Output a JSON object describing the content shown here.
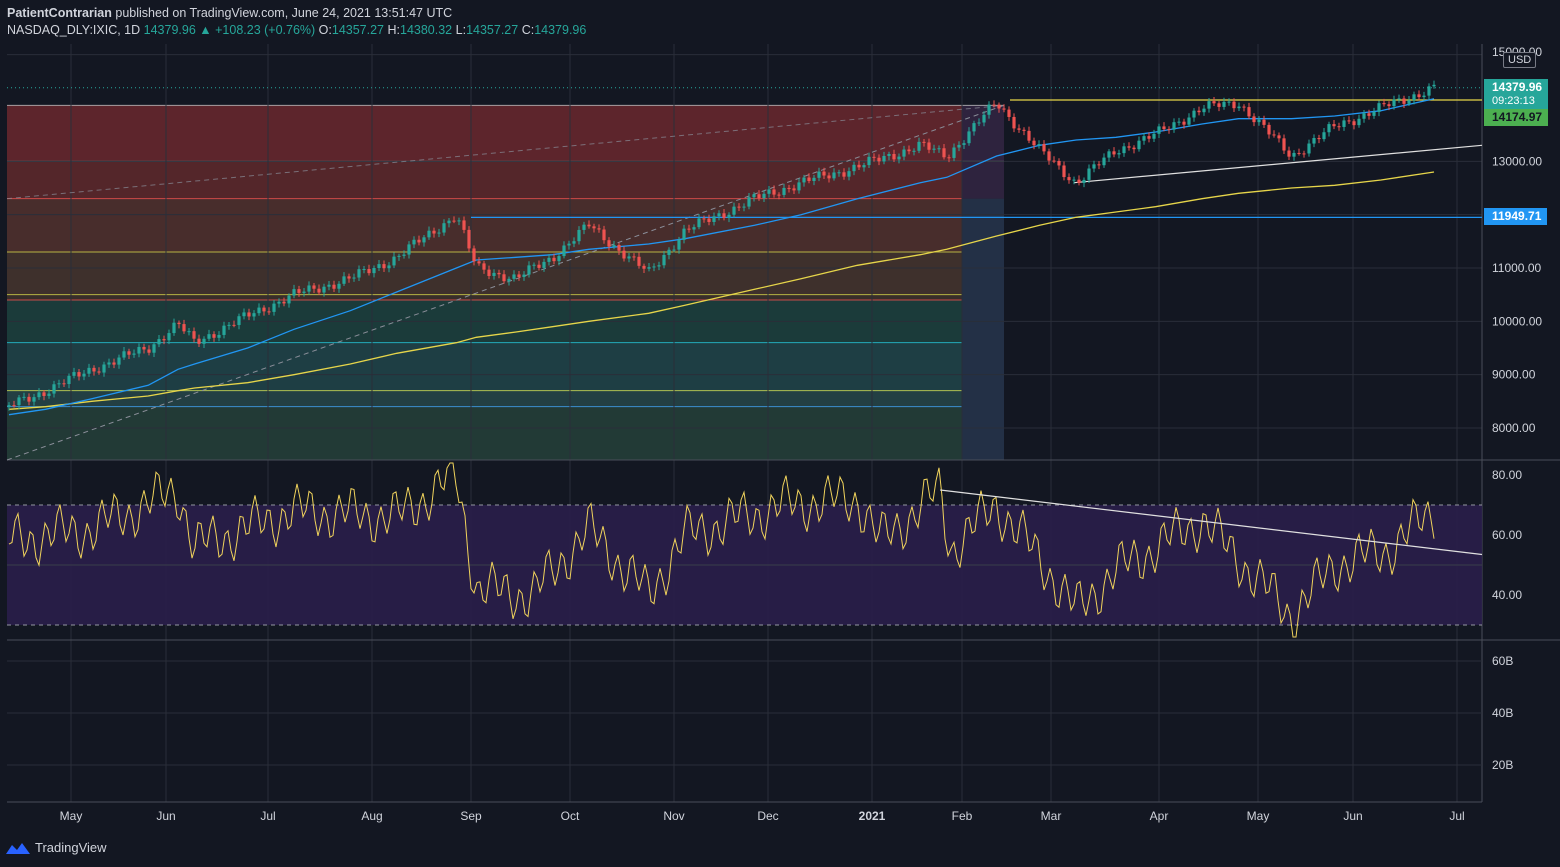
{
  "header": {
    "author": "PatientContrarian",
    "published_text": "published on TradingView.com, June 24, 2021 13:51:47 UTC",
    "symbol": "NASDAQ_DLY:IXIC, 1D",
    "last": "14379.96",
    "change": "▲ +108.23 (+0.76%)",
    "o_label": "O:",
    "o": "14357.27",
    "h_label": "H:",
    "h": "14380.32",
    "l_label": "L:",
    "l": "14357.27",
    "c_label": "C:",
    "c": "14379.96"
  },
  "price_tags": {
    "close": "14379.96",
    "countdown": "09:23:13",
    "ma": "14174.97",
    "level": "11949.71",
    "currency": "USD"
  },
  "footer": {
    "brand": "TradingView"
  },
  "colors": {
    "background": "#131722",
    "up": "#26a69a",
    "down": "#ef5350",
    "ma_fast": "#2196f3",
    "ma_slow": "#e6d54a",
    "rsi": "#f0d35c",
    "rsi_band": "#2a1e4a"
  },
  "chart_data": [
    {
      "type": "line",
      "name": "price",
      "x_ticks": [
        "May",
        "Jun",
        "Jul",
        "Aug",
        "Sep",
        "Oct",
        "Nov",
        "Dec",
        "2021",
        "Feb",
        "Mar",
        "Apr",
        "May",
        "Jun",
        "Jul"
      ],
      "y_ticks": [
        "15000.00",
        "13000.00",
        "12000.00",
        "11000.00",
        "10000.00",
        "9000.00",
        "8000.00"
      ],
      "ylim": [
        7400,
        15200
      ],
      "close_x": [
        "2020-04-20",
        "2020-05-01",
        "2020-05-15",
        "2020-06-01",
        "2020-06-10",
        "2020-06-15",
        "2020-07-01",
        "2020-07-15",
        "2020-08-01",
        "2020-08-15",
        "2020-09-02",
        "2020-09-08",
        "2020-09-20",
        "2020-10-01",
        "2020-10-12",
        "2020-10-30",
        "2020-11-10",
        "2020-12-01",
        "2020-12-15",
        "2021-01-01",
        "2021-01-20",
        "2021-01-28",
        "2021-02-12",
        "2021-02-25",
        "2021-03-08",
        "2021-03-20",
        "2021-04-01",
        "2021-04-15",
        "2021-04-26",
        "2021-05-12",
        "2021-05-25",
        "2021-06-08",
        "2021-06-24"
      ],
      "close_y": [
        8400,
        8700,
        9100,
        9500,
        9950,
        9600,
        10100,
        10500,
        10800,
        11200,
        12000,
        11000,
        10800,
        11200,
        11800,
        10900,
        11700,
        12300,
        12600,
        12900,
        13300,
        13100,
        14100,
        13200,
        12600,
        13200,
        13500,
        14000,
        14100,
        13100,
        13650,
        14000,
        14380
      ],
      "ma_fast_y": [
        8250,
        8350,
        8550,
        8800,
        9100,
        9200,
        9500,
        9850,
        10200,
        10550,
        11000,
        11150,
        11200,
        11250,
        11350,
        11450,
        11550,
        11800,
        12000,
        12300,
        12600,
        12700,
        13100,
        13300,
        13400,
        13450,
        13550,
        13700,
        13800,
        13800,
        13850,
        13950,
        14175
      ],
      "ma_slow_y": [
        8350,
        8400,
        8500,
        8600,
        8700,
        8750,
        8850,
        9000,
        9200,
        9400,
        9600,
        9700,
        9800,
        9900,
        10000,
        10150,
        10300,
        10600,
        10800,
        11050,
        11250,
        11350,
        11600,
        11800,
        11950,
        12050,
        12150,
        12300,
        12400,
        12500,
        12550,
        12650,
        12800
      ],
      "annotations": [
        "11949.71",
        "14174.97",
        "14379.96"
      ]
    },
    {
      "type": "line",
      "name": "rsi",
      "y_ticks": [
        "80.00",
        "60.00",
        "40.00"
      ],
      "ylim": [
        25,
        85
      ],
      "upper_band": 70,
      "lower_band": 30,
      "x": [
        "2020-04-20",
        "2020-05-15",
        "2020-06-10",
        "2020-06-15",
        "2020-07-15",
        "2020-08-15",
        "2020-09-02",
        "2020-09-08",
        "2020-09-25",
        "2020-10-12",
        "2020-10-30",
        "2020-11-10",
        "2020-12-10",
        "2021-01-01",
        "2021-01-08",
        "2021-01-26",
        "2021-01-29",
        "2021-02-12",
        "2021-02-25",
        "2021-03-08",
        "2021-03-20",
        "2021-04-15",
        "2021-05-12",
        "2021-05-25",
        "2021-06-10",
        "2021-06-24"
      ],
      "y": [
        58,
        62,
        75,
        56,
        68,
        66,
        80,
        42,
        40,
        62,
        40,
        60,
        70,
        72,
        58,
        75,
        55,
        70,
        52,
        35,
        48,
        65,
        33,
        50,
        55,
        68
      ]
    },
    {
      "type": "bar",
      "name": "volume",
      "y_ticks": [
        "60B",
        "40B",
        "20B"
      ]
    }
  ]
}
